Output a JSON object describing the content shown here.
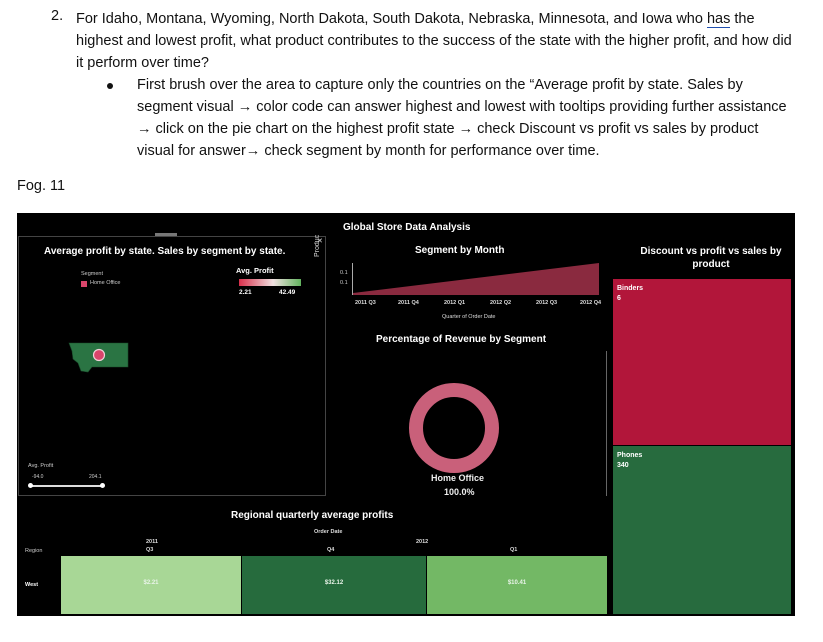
{
  "question": {
    "number": "2.",
    "text_before": "For Idaho, Montana, Wyoming, North Dakota, South Dakota, Nebraska, Minnesota, and Iowa who",
    "underlined": "has",
    "text_after": "the highest and lowest profit, what product contributes to the success of the state with the higher profit, and how did it perform over time?"
  },
  "bullet": {
    "text": "First brush over the area to capture only the countries on the “Average profit by state. Sales by segment visual → color code can answer highest and lowest with tooltips providing further assistance → click on the pie chart on the highest profit state → check Discount vs profit vs sales by product visual for answer→ check segment by month for performance over time."
  },
  "figure_label": "Fog. 11",
  "dashboard": {
    "title": "Global Store Data Analysis",
    "map_panel": {
      "title": "Average profit by state. Sales by segment by state.",
      "segment_legend_title": "Segment",
      "segment_item": "Home Office",
      "profit_legend_title": "Avg. Profit",
      "profit_min": "2.21",
      "profit_max": "42.49",
      "slider_title": "Avg. Profit",
      "slider_min": "-94.0",
      "slider_max": "204.1",
      "sidebar_label": "Produc"
    },
    "segment_month": {
      "title": "Segment by Month",
      "y_tick_1": "0.1",
      "y_tick_2": "0.1",
      "x_ticks": [
        "2011 Q3",
        "2011 Q4",
        "2012 Q1",
        "2012 Q2",
        "2012 Q3",
        "2012 Q4"
      ],
      "x_label": "Quarter of Order Date"
    },
    "revenue_pie": {
      "title": "Percentage of Revenue by Segment",
      "segment": "Home Office",
      "percent": "100.0%"
    },
    "treemap": {
      "title": "Discount vs profit vs sales by product",
      "cells": [
        {
          "name": "Binders",
          "value": "6",
          "color": "#b2163a"
        },
        {
          "name": "Phones",
          "value": "340",
          "color": "#276b3e"
        }
      ]
    },
    "regional": {
      "title": "Regional quarterly average profits",
      "header": "Order Date",
      "year_2011": "2011",
      "year_2012": "2012",
      "quarters": [
        "Q3",
        "Q4",
        "Q1"
      ],
      "row_header": "Region",
      "row_label": "West",
      "values": [
        "$2.21",
        "$32.12",
        "$10.41"
      ],
      "colors": [
        "#a8d796",
        "#266b3d",
        "#73b865"
      ]
    }
  }
}
